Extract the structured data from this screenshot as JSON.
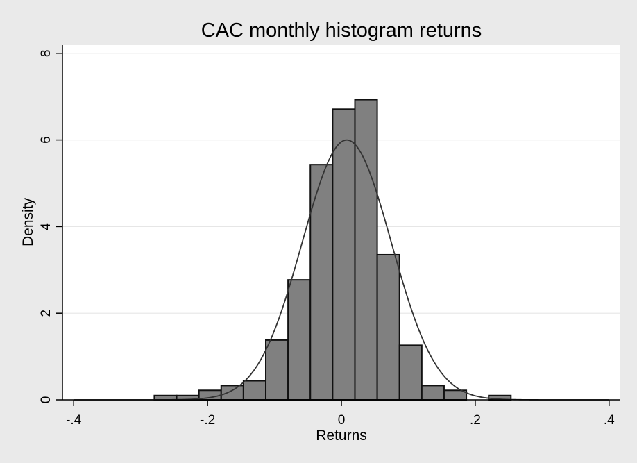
{
  "chart_data": {
    "type": "bar",
    "title": "CAC monthly histogram returns",
    "xlabel": "Returns",
    "ylabel": "Density",
    "xlim": [
      -0.4,
      0.4
    ],
    "ylim": [
      0,
      8
    ],
    "x_ticks": [
      -0.4,
      -0.2,
      0,
      0.2,
      0.4
    ],
    "x_tick_labels": [
      "-.4",
      "-.2",
      "0",
      ".2",
      ".4"
    ],
    "y_ticks": [
      0,
      2,
      4,
      6,
      8
    ],
    "y_tick_labels": [
      "0",
      "2",
      "4",
      "6",
      "8"
    ],
    "grid": true,
    "bin_width": 0.0333,
    "bins": [
      {
        "x0": -0.2795,
        "density": 0.1
      },
      {
        "x0": -0.2462,
        "density": 0.1
      },
      {
        "x0": -0.2129,
        "density": 0.22
      },
      {
        "x0": -0.1796,
        "density": 0.33
      },
      {
        "x0": -0.1463,
        "density": 0.44
      },
      {
        "x0": -0.113,
        "density": 1.38
      },
      {
        "x0": -0.0797,
        "density": 2.77
      },
      {
        "x0": -0.0464,
        "density": 5.43
      },
      {
        "x0": -0.0131,
        "density": 6.71
      },
      {
        "x0": 0.0202,
        "density": 6.93
      },
      {
        "x0": 0.0535,
        "density": 3.35
      },
      {
        "x0": 0.0868,
        "density": 1.26
      },
      {
        "x0": 0.1201,
        "density": 0.33
      },
      {
        "x0": 0.1534,
        "density": 0.22
      },
      {
        "x0": 0.22,
        "density": 0.1
      }
    ],
    "normal_overlay": {
      "mean": 0.008,
      "sd": 0.0665
    },
    "colors": {
      "bar_fill": "#808080",
      "bar_stroke": "#111111",
      "curve": "#333333",
      "plot_bg": "#ffffff",
      "page_bg": "#eaeaea",
      "grid": "#e6e6e6"
    }
  }
}
